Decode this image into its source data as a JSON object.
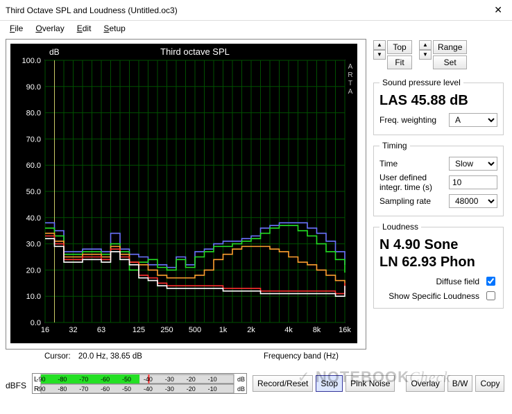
{
  "window": {
    "title": "Third Octave SPL and Loudness (Untitled.oc3)",
    "close_glyph": "✕"
  },
  "menu": {
    "file": "File",
    "file_ul": "F",
    "overlay": "Overlay",
    "overlay_ul": "O",
    "edit": "Edit",
    "edit_ul": "E",
    "setup": "Setup",
    "setup_ul": "S"
  },
  "chart": {
    "title": "Third octave SPL",
    "y_label": "dB",
    "x_label": "Frequency band (Hz)",
    "side_label": "ARTA",
    "bg_color": "#000000",
    "grid_color": "#005000",
    "axis_text_color": "#ffffff",
    "tick_color": "#c0c0c0",
    "y_min": 0,
    "y_max": 100,
    "y_step": 10,
    "y_ticks": [
      0,
      10,
      20,
      30,
      40,
      50,
      60,
      70,
      80,
      90,
      100
    ],
    "x_ticks": [
      16,
      32,
      63,
      125,
      250,
      500,
      "1k",
      "2k",
      "4k",
      "8k",
      "16k"
    ],
    "series": [
      {
        "name": "blue",
        "color": "#6b74ff",
        "values": [
          38,
          35,
          27,
          27,
          28,
          28,
          27,
          34,
          28,
          26,
          25,
          22,
          22,
          21,
          25,
          22,
          27,
          28,
          30,
          31,
          31,
          32,
          33,
          36,
          37,
          38,
          38,
          38,
          36,
          34,
          31,
          27,
          22
        ]
      },
      {
        "name": "green",
        "color": "#24e024",
        "values": [
          36,
          33,
          26,
          26,
          27,
          27,
          26,
          30,
          27,
          20,
          23,
          24,
          21,
          20,
          24,
          21,
          25,
          27,
          29,
          29,
          30,
          31,
          32,
          34,
          36,
          37,
          37,
          35,
          33,
          30,
          27,
          24,
          19
        ]
      },
      {
        "name": "orange",
        "color": "#ffa030",
        "values": [
          34,
          31,
          25,
          25,
          26,
          26,
          25,
          29,
          26,
          23,
          22,
          20,
          18,
          17,
          17,
          17,
          18,
          20,
          24,
          26,
          28,
          29,
          29,
          29,
          28,
          27,
          25,
          23,
          22,
          20,
          18,
          16,
          14
        ]
      },
      {
        "name": "red",
        "color": "#ff3030",
        "values": [
          33,
          30,
          24,
          24,
          25,
          25,
          24,
          28,
          25,
          23,
          18,
          17,
          15,
          14,
          14,
          14,
          14,
          14,
          14,
          13,
          13,
          13,
          13,
          12,
          12,
          12,
          12,
          12,
          12,
          12,
          12,
          11,
          15
        ]
      },
      {
        "name": "white",
        "color": "#ffffff",
        "values": [
          32,
          29,
          23,
          23,
          24,
          24,
          23,
          27,
          24,
          22,
          17,
          16,
          14,
          13,
          13,
          13,
          13,
          13,
          13,
          12,
          12,
          12,
          12,
          11,
          11,
          11,
          11,
          11,
          11,
          11,
          11,
          10,
          14
        ]
      }
    ],
    "cursor_x_mark_color": "#cccc66"
  },
  "cursor": {
    "prefix": "Cursor:",
    "text": "20.0 Hz, 38.65 dB"
  },
  "controls": {
    "top_label": "Top",
    "fit_label": "Fit",
    "range_label": "Range",
    "set_label": "Set"
  },
  "spl": {
    "legend": "Sound pressure level",
    "readout": "LAS 45.88 dB",
    "weighting_label": "Freq. weighting",
    "weighting_value": "A"
  },
  "timing": {
    "legend": "Timing",
    "time_label": "Time",
    "time_value": "Slow",
    "integr_label": "User defined integr. time (s)",
    "integr_value": "10",
    "rate_label": "Sampling rate",
    "rate_value": "48000"
  },
  "loudness": {
    "legend": "Loudness",
    "line1": "N 4.90 Sone",
    "line2": "LN 62.93 Phon",
    "diffuse_label": "Diffuse field",
    "diffuse_checked": true,
    "specific_label": "Show Specific Loudness",
    "specific_checked": false
  },
  "meter": {
    "label": "dBFS",
    "L": "L",
    "R": "R",
    "ticks": [
      -90,
      -80,
      -70,
      -60,
      -50,
      -40,
      -30,
      -20,
      -10
    ],
    "unit": "dB",
    "fill_color": "#24e024",
    "fill_db_L": -44,
    "fill_db_R": -90,
    "peak_color": "#ff3030",
    "peak_db_L": -40
  },
  "buttons": {
    "record": "Record/Reset",
    "stop": "Stop",
    "pink": "Pink Noise",
    "overlay": "Overlay",
    "bw": "B/W",
    "copy": "Copy"
  },
  "watermark": {
    "a": "NOTEBOOK",
    "b": "Check"
  }
}
